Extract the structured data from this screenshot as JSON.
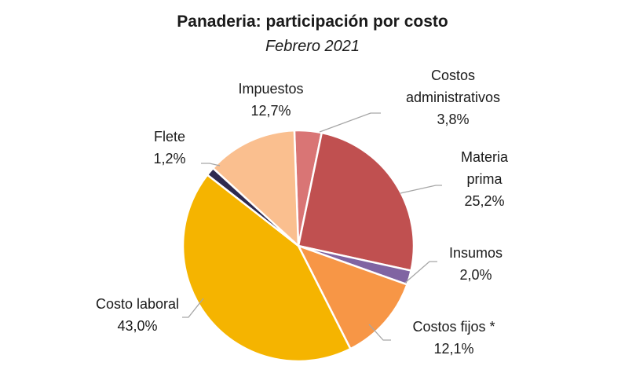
{
  "chart_data": {
    "type": "pie",
    "title": "Panaderia: participación por costo",
    "subtitle": "Febrero 2021",
    "slices": [
      {
        "name": "Costos administrativos",
        "value": 3.8,
        "label_lines": [
          "Costos",
          "administrativos"
        ],
        "value_text": "3,8%",
        "color": "#d97575"
      },
      {
        "name": "Materia prima",
        "value": 25.2,
        "label_lines": [
          "Materia",
          "prima"
        ],
        "value_text": "25,2%",
        "color": "#c05050"
      },
      {
        "name": "Insumos",
        "value": 2.0,
        "label_lines": [
          "Insumos"
        ],
        "value_text": "2,0%",
        "color": "#8064a2"
      },
      {
        "name": "Costos fijos *",
        "value": 12.1,
        "label_lines": [
          "Costos fijos *"
        ],
        "value_text": "12,1%",
        "color": "#f79646"
      },
      {
        "name": "Costo laboral",
        "value": 43.0,
        "label_lines": [
          "Costo laboral"
        ],
        "value_text": "43,0%",
        "color": "#f5b400"
      },
      {
        "name": "Flete",
        "value": 1.2,
        "label_lines": [
          "Flete"
        ],
        "value_text": "1,2%",
        "color": "#2e2a4f"
      },
      {
        "name": "Impuestos",
        "value": 12.7,
        "label_lines": [
          "Impuestos"
        ],
        "value_text": "12,7%",
        "color": "#fabf8f"
      }
    ]
  }
}
